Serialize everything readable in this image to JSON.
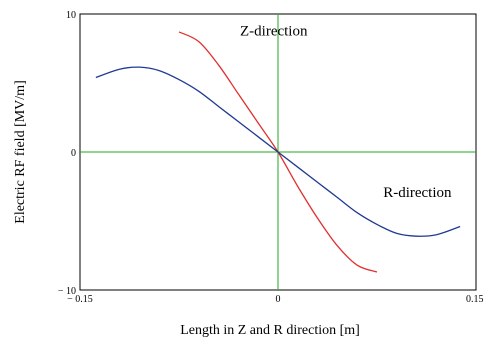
{
  "chart_data": {
    "type": "line",
    "title": "",
    "xlabel": "Length in Z and R direction [m]",
    "ylabel": "Electric RF field [MV/m]",
    "xlim": [
      -0.15,
      0.15
    ],
    "ylim": [
      -10,
      10
    ],
    "x_ticks": [
      {
        "value": -0.15,
        "label": "− 0.15"
      },
      {
        "value": 0,
        "label": "0"
      },
      {
        "value": 0.15,
        "label": "0.15"
      }
    ],
    "y_ticks": [
      {
        "value": 10,
        "label": "10"
      },
      {
        "value": 0,
        "label": "0"
      },
      {
        "value": -10,
        "label": "− 10"
      }
    ],
    "zero_lines_color": "#22aa22",
    "series": [
      {
        "color": "#e03030",
        "x": [
          -0.075,
          -0.06,
          -0.045,
          -0.03,
          -0.015,
          0,
          0.015,
          0.03,
          0.045,
          0.06,
          0.075
        ],
        "y": [
          8.7,
          8.0,
          6.3,
          4.2,
          2.1,
          0,
          -2.5,
          -4.8,
          -6.8,
          -8.2,
          -8.7
        ]
      },
      {
        "color": "#1f3a93",
        "x": [
          -0.138,
          -0.12,
          -0.105,
          -0.09,
          -0.075,
          -0.06,
          -0.045,
          -0.03,
          -0.015,
          0,
          0.015,
          0.03,
          0.045,
          0.06,
          0.075,
          0.09,
          0.105,
          0.12,
          0.138
        ],
        "y": [
          5.4,
          6.0,
          6.15,
          5.9,
          5.25,
          4.4,
          3.3,
          2.2,
          1.1,
          0,
          -1.1,
          -2.2,
          -3.3,
          -4.4,
          -5.25,
          -5.9,
          -6.1,
          -6.0,
          -5.4
        ]
      }
    ],
    "annotations": [
      {
        "text": "Z-direction",
        "x": 0,
        "y": 8.8
      },
      {
        "text": "R-direction",
        "x": 0.06,
        "y": -2.9
      }
    ]
  }
}
